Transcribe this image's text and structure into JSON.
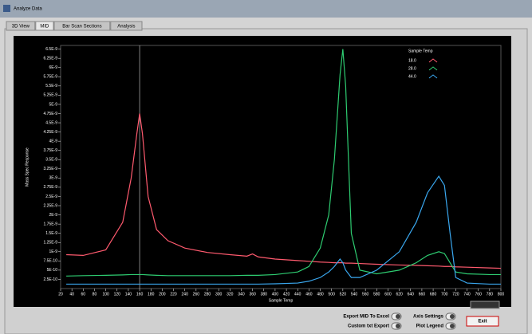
{
  "window": {
    "title": "Analyze Data"
  },
  "tabs": [
    "3D View",
    "MID",
    "Bar Scan Sections",
    "Analysis"
  ],
  "buttons": {
    "export_excel": "Export MID To Excel",
    "custom_export": "Custom txt Export",
    "axis_settings": "Axis Settings",
    "plot_legend": "Plot Legend",
    "exit": "Exit"
  },
  "chart_data": {
    "type": "line",
    "xlabel": "Sample Temp",
    "ylabel": "Mass Spec Response",
    "legend_title": "Sample Temp",
    "legend": "upper-right",
    "background": "#000000",
    "cursor": 160,
    "x": [
      30,
      60,
      100,
      130,
      145,
      155,
      160,
      165,
      175,
      190,
      210,
      240,
      280,
      320,
      350,
      360,
      370,
      400,
      440,
      460,
      480,
      495,
      505,
      515,
      520,
      525,
      535,
      550,
      580,
      620,
      650,
      670,
      690,
      700,
      710,
      720,
      740,
      780,
      800
    ],
    "series": [
      {
        "name": "18.0",
        "color": "#ff5a6e",
        "values": [
          9.2e-10,
          9e-10,
          1.05e-09,
          1.8e-09,
          3e-09,
          4.2e-09,
          4.75e-09,
          4.2e-09,
          2.5e-09,
          1.6e-09,
          1.3e-09,
          1.1e-09,
          9.8e-10,
          9.2e-10,
          8.8e-10,
          9.4e-10,
          8.6e-10,
          8e-10,
          7.6e-10,
          7.4e-10,
          7.2e-10,
          7.1e-10,
          7e-10,
          7e-10,
          7e-10,
          6.9e-10,
          6.9e-10,
          6.8e-10,
          6.6e-10,
          6.4e-10,
          6.3e-10,
          6.2e-10,
          6.1e-10,
          6e-10,
          6e-10,
          5.9e-10,
          5.8e-10,
          5.6e-10,
          5.5e-10
        ]
      },
      {
        "name": "28.0",
        "color": "#2ecc71",
        "values": [
          3.4e-10,
          3.5e-10,
          3.6e-10,
          3.7e-10,
          3.8e-10,
          3.8e-10,
          3.8e-10,
          3.8e-10,
          3.7e-10,
          3.6e-10,
          3.5e-10,
          3.5e-10,
          3.5e-10,
          3.5e-10,
          3.6e-10,
          3.6e-10,
          3.6e-10,
          3.8e-10,
          4.5e-10,
          6e-10,
          1.1e-09,
          2e-09,
          3.5e-09,
          5.8e-09,
          6.5e-09,
          5.5e-09,
          1.5e-09,
          5e-10,
          4e-10,
          5e-10,
          7e-10,
          9e-10,
          1e-09,
          9.5e-10,
          7e-10,
          4.5e-10,
          4e-10,
          3.8e-10,
          3.8e-10
        ]
      },
      {
        "name": "44.0",
        "color": "#3aa8f0",
        "values": [
          1.2e-10,
          1.2e-10,
          1.2e-10,
          1.2e-10,
          1.2e-10,
          1.2e-10,
          1.2e-10,
          1.2e-10,
          1.2e-10,
          1.2e-10,
          1.2e-10,
          1.2e-10,
          1.2e-10,
          1.2e-10,
          1.2e-10,
          1.2e-10,
          1.2e-10,
          1.3e-10,
          1.5e-10,
          2e-10,
          3e-10,
          4.5e-10,
          6e-10,
          8e-10,
          7e-10,
          5e-10,
          3e-10,
          3e-10,
          5e-10,
          1e-09,
          1.8e-09,
          2.6e-09,
          3.05e-09,
          2.8e-09,
          1.5e-09,
          3e-10,
          1.5e-10,
          1.2e-10,
          1.2e-10
        ]
      }
    ],
    "xlim": [
      20,
      800
    ],
    "xticks": [
      20,
      40,
      60,
      80,
      100,
      120,
      140,
      160,
      180,
      200,
      220,
      240,
      260,
      280,
      300,
      320,
      340,
      360,
      380,
      400,
      420,
      440,
      460,
      480,
      500,
      520,
      540,
      560,
      580,
      600,
      620,
      640,
      660,
      680,
      700,
      720,
      740,
      760,
      780,
      800
    ],
    "ylim": [
      0,
      6.6e-09
    ],
    "yticks": [
      {
        "value": 2.5e-10,
        "label": "2.5E-10"
      },
      {
        "value": 5e-10,
        "label": "5E-10"
      },
      {
        "value": 7.5e-10,
        "label": "7.5E-10"
      },
      {
        "value": 1e-09,
        "label": "1E-9"
      },
      {
        "value": 1.25e-09,
        "label": "1.25E-9"
      },
      {
        "value": 1.5e-09,
        "label": "1.5E-9"
      },
      {
        "value": 1.75e-09,
        "label": "1.75E-9"
      },
      {
        "value": 2e-09,
        "label": "2E-9"
      },
      {
        "value": 2.25e-09,
        "label": "2.25E-9"
      },
      {
        "value": 2.5e-09,
        "label": "2.5E-9"
      },
      {
        "value": 2.75e-09,
        "label": "2.75E-9"
      },
      {
        "value": 3e-09,
        "label": "3E-9"
      },
      {
        "value": 3.25e-09,
        "label": "3.25E-9"
      },
      {
        "value": 3.5e-09,
        "label": "3.5E-9"
      },
      {
        "value": 3.75e-09,
        "label": "3.75E-9"
      },
      {
        "value": 4e-09,
        "label": "4E-9"
      },
      {
        "value": 4.25e-09,
        "label": "4.25E-9"
      },
      {
        "value": 4.5e-09,
        "label": "4.5E-9"
      },
      {
        "value": 4.75e-09,
        "label": "4.75E-9"
      },
      {
        "value": 5e-09,
        "label": "5E-9"
      },
      {
        "value": 5.25e-09,
        "label": "5.25E-9"
      },
      {
        "value": 5.5e-09,
        "label": "5.5E-9"
      },
      {
        "value": 5.75e-09,
        "label": "5.75E-9"
      },
      {
        "value": 6e-09,
        "label": "6E-9"
      },
      {
        "value": 6.25e-09,
        "label": "6.25E-9"
      },
      {
        "value": 6.5e-09,
        "label": "6.5E-9"
      }
    ]
  }
}
